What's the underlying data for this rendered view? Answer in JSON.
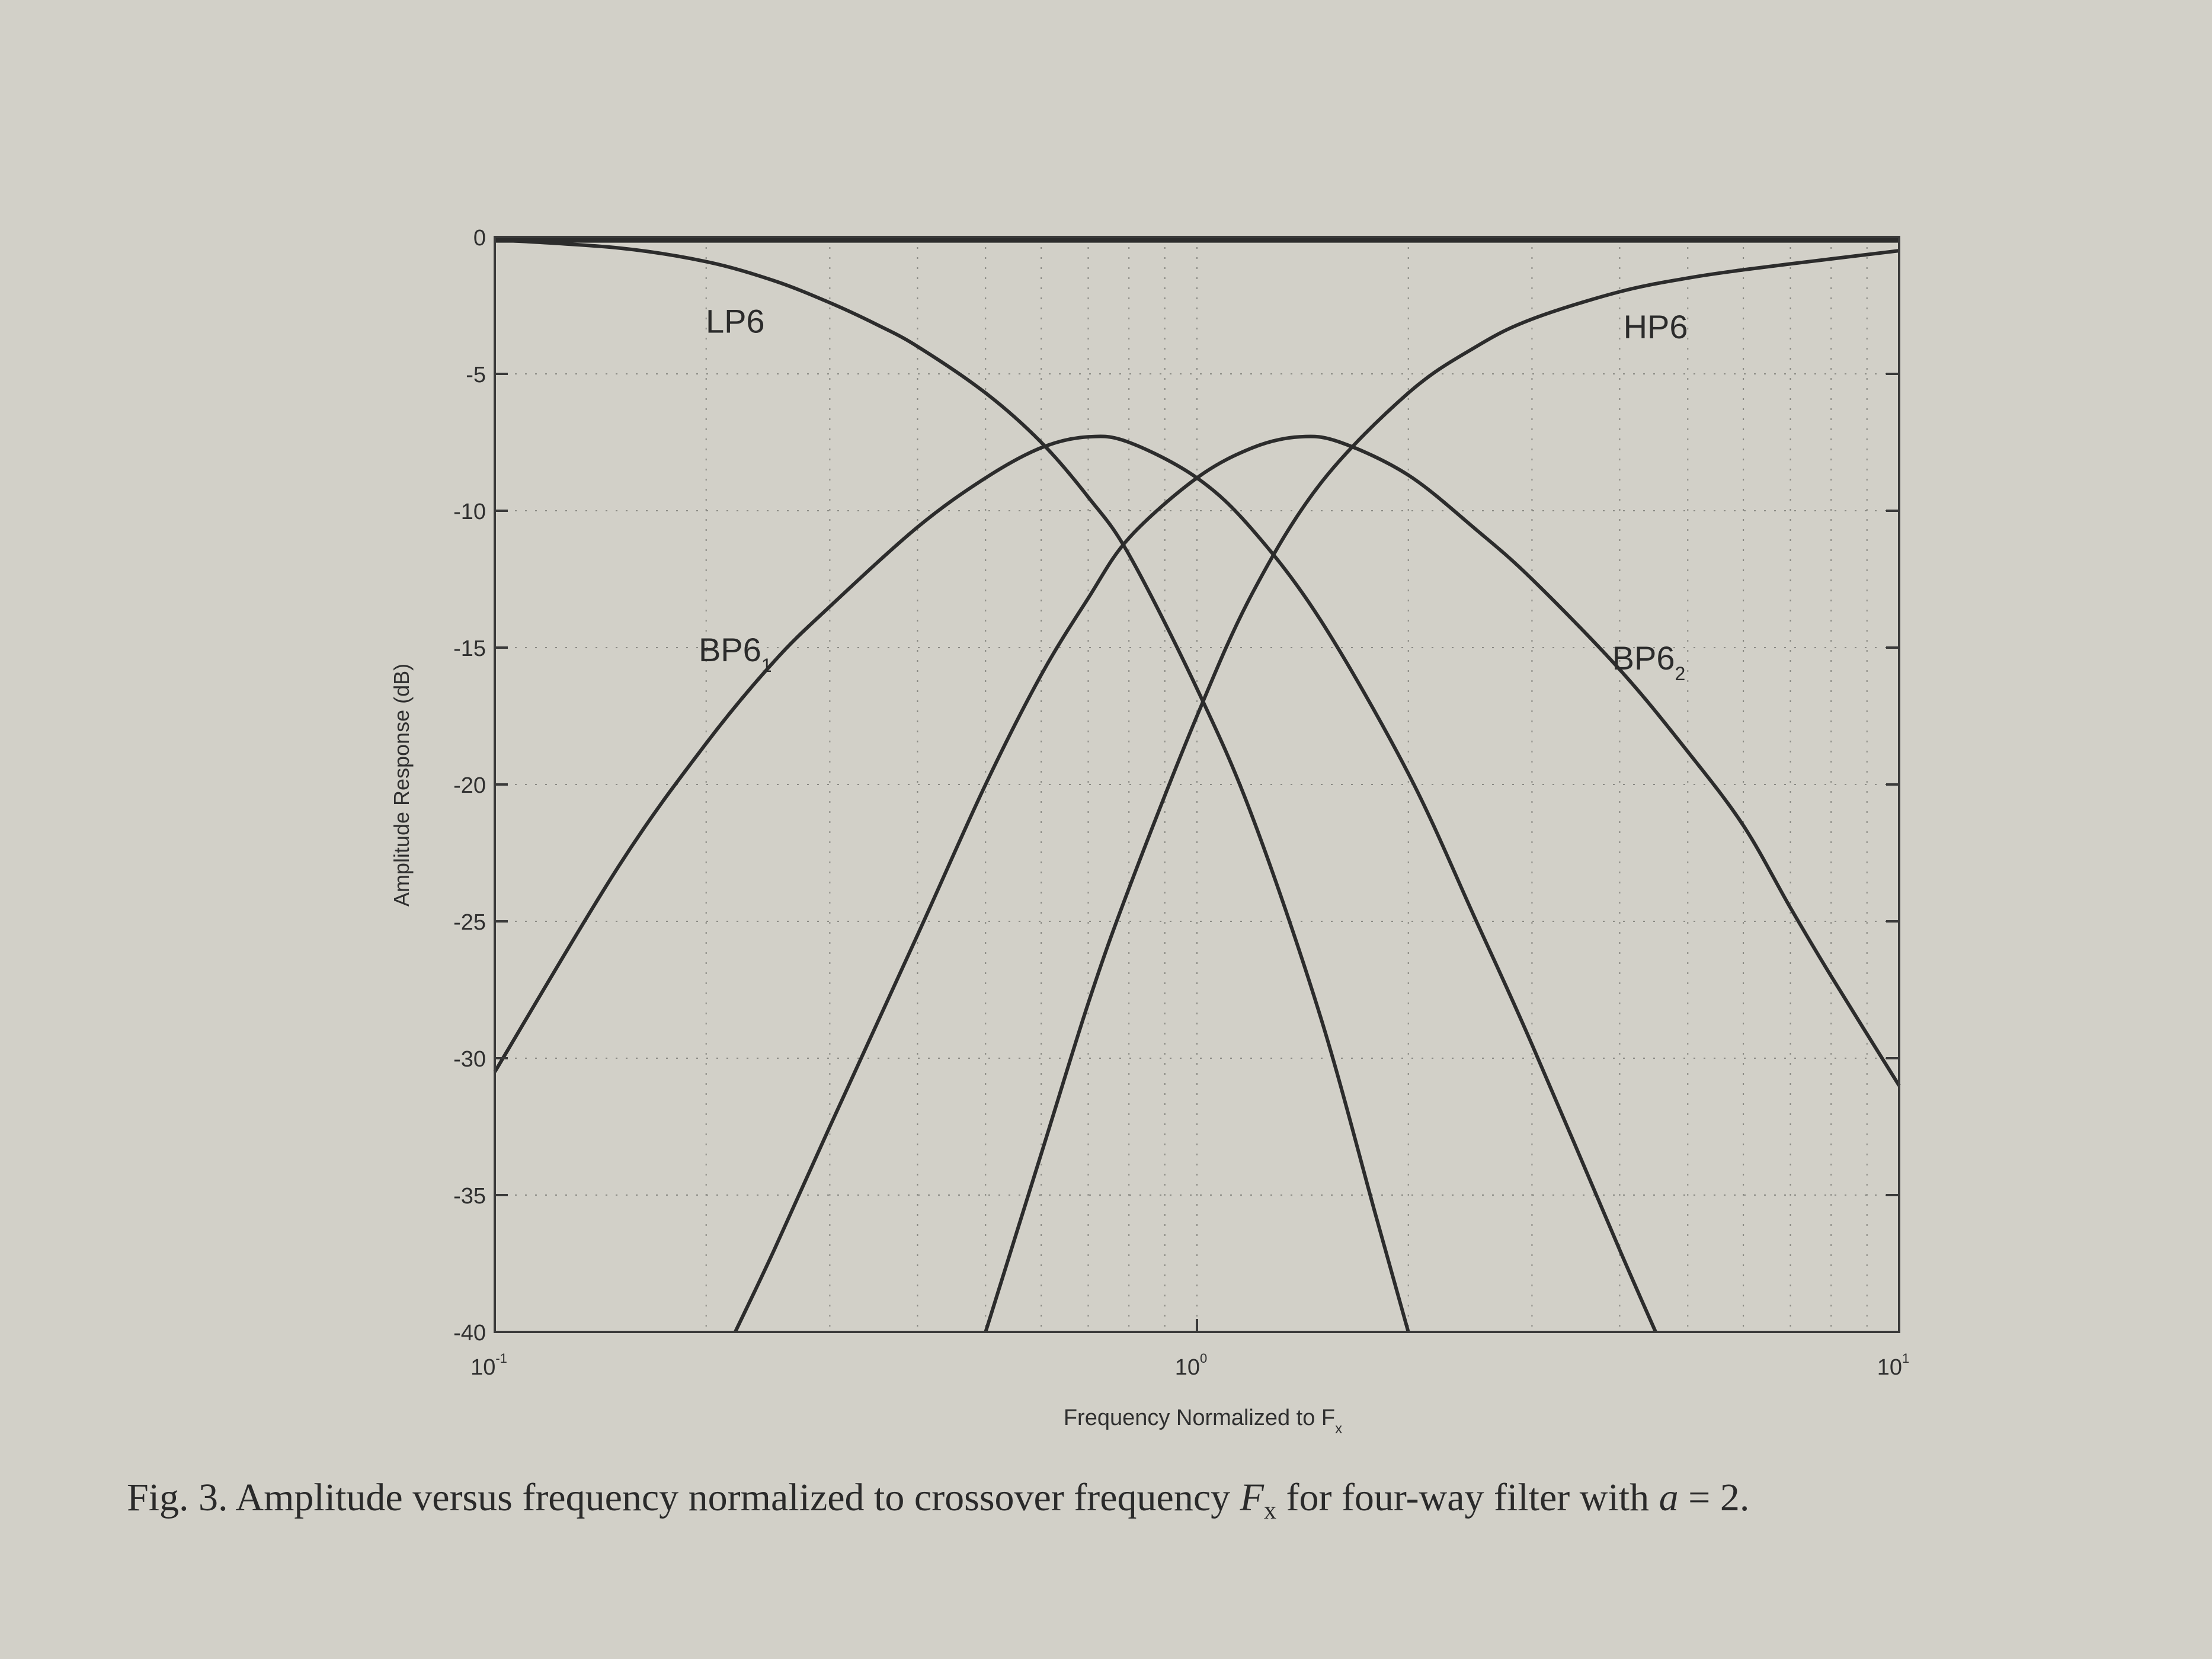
{
  "caption": {
    "prefix": "Fig. 3. Amplitude versus frequency normalized to crossover frequency ",
    "symbol": "F",
    "symbol_subscript": "x",
    "middle": " for four-way filter with ",
    "alpha": "a",
    "suffix": " = 2."
  },
  "chart_data": {
    "type": "line",
    "title": "",
    "xlabel": "Frequency Normalized to F",
    "xlabel_subscript": "x",
    "ylabel": "Amplitude Response (dB)",
    "xscale": "log",
    "xlim": [
      0.1,
      10
    ],
    "ylim": [
      -40,
      0
    ],
    "grid": true,
    "x_ticks": [
      {
        "value": 0.1,
        "base": "10",
        "exp": "-1"
      },
      {
        "value": 1,
        "base": "10",
        "exp": "0"
      },
      {
        "value": 10,
        "base": "10",
        "exp": "1"
      }
    ],
    "y_ticks": [
      0,
      -5,
      -10,
      -15,
      -20,
      -25,
      -30,
      -35,
      -40
    ],
    "series_labels": [
      {
        "text": "LP6",
        "sub": "",
        "x": 0.22,
        "y": -3.5
      },
      {
        "text": "HP6",
        "sub": "",
        "x": 4.5,
        "y": -3.7
      },
      {
        "text": "BP6",
        "sub": "1",
        "x": 0.22,
        "y": -15.5
      },
      {
        "text": "BP6",
        "sub": "2",
        "x": 4.4,
        "y": -15.8
      }
    ],
    "series": [
      {
        "name": "LP6",
        "x": [
          0.1,
          0.15,
          0.2,
          0.25,
          0.3,
          0.35,
          0.4,
          0.5,
          0.6,
          0.7,
          0.8,
          1.0,
          1.2,
          1.5,
          1.8,
          2.0
        ],
        "values": [
          -0.1,
          -0.4,
          -0.9,
          -1.6,
          -2.4,
          -3.2,
          -4.0,
          -5.7,
          -7.5,
          -9.5,
          -11.6,
          -16.5,
          -21.2,
          -28.5,
          -35.8,
          -40
        ]
      },
      {
        "name": "BP6_1",
        "x": [
          0.1,
          0.15,
          0.2,
          0.25,
          0.3,
          0.4,
          0.5,
          0.6,
          0.7,
          0.8,
          1.0,
          1.2,
          1.5,
          2.0,
          2.5,
          3.0,
          4.0,
          4.5
        ],
        "values": [
          -30.5,
          -23.0,
          -18.5,
          -15.5,
          -13.5,
          -10.6,
          -8.8,
          -7.7,
          -7.3,
          -7.5,
          -8.8,
          -10.7,
          -14.0,
          -19.6,
          -25.0,
          -29.5,
          -37.0,
          -40
        ]
      },
      {
        "name": "BP6_2",
        "x": [
          0.22,
          0.25,
          0.3,
          0.4,
          0.5,
          0.6,
          0.7,
          0.8,
          1.0,
          1.2,
          1.4,
          1.6,
          2.0,
          2.5,
          3.0,
          4.0,
          5.0,
          6.0,
          7.0,
          8.0,
          10.0
        ],
        "values": [
          -40,
          -37.0,
          -32.5,
          -25.5,
          -20.0,
          -16.0,
          -13.2,
          -11.0,
          -8.8,
          -7.7,
          -7.3,
          -7.5,
          -8.7,
          -10.7,
          -12.5,
          -15.8,
          -18.8,
          -21.5,
          -24.5,
          -27.0,
          -31.0
        ]
      },
      {
        "name": "HP6",
        "x": [
          0.5,
          0.6,
          0.7,
          0.8,
          1.0,
          1.2,
          1.5,
          2.0,
          2.5,
          3.0,
          4.0,
          5.0,
          6.0,
          8.0,
          10.0
        ],
        "values": [
          -40,
          -33.5,
          -28.0,
          -23.8,
          -17.5,
          -13.0,
          -9.0,
          -5.7,
          -4.0,
          -3.0,
          -2.0,
          -1.5,
          -1.2,
          -0.8,
          -0.5
        ]
      },
      {
        "name": "Sum",
        "x": [
          0.1,
          1.0,
          10.0
        ],
        "values": [
          -0.1,
          -0.1,
          -0.1
        ]
      }
    ]
  }
}
